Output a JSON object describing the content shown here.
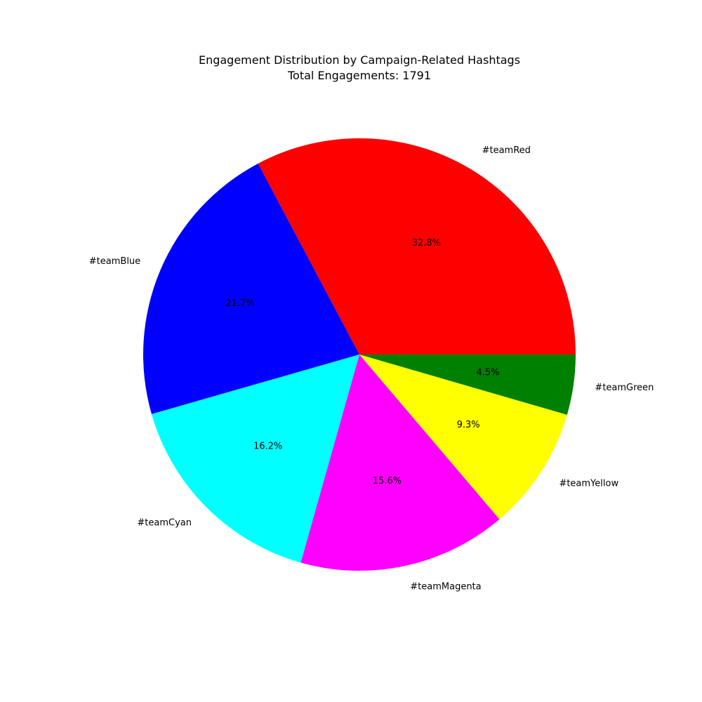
{
  "chart_data": {
    "type": "pie",
    "title_lines": [
      "Engagement Distribution by Campaign-Related Hashtags",
      "Total Engagements: 1791"
    ],
    "slices": [
      {
        "label": "#teamRed",
        "percent": 32.8,
        "percent_label": "32.8%",
        "color": "#ff0000"
      },
      {
        "label": "#teamBlue",
        "percent": 21.7,
        "percent_label": "21.7%",
        "color": "#0000ff"
      },
      {
        "label": "#teamCyan",
        "percent": 16.2,
        "percent_label": "16.2%",
        "color": "#00ffff"
      },
      {
        "label": "#teamMagenta",
        "percent": 15.6,
        "percent_label": "15.6%",
        "color": "#ff00ff"
      },
      {
        "label": "#teamYellow",
        "percent": 9.3,
        "percent_label": "9.3%",
        "color": "#ffff00"
      },
      {
        "label": "#teamGreen",
        "percent": 4.5,
        "percent_label": "4.5%",
        "color": "#008000"
      }
    ],
    "start_angle_deg": 0,
    "direction": "counterclockwise"
  }
}
